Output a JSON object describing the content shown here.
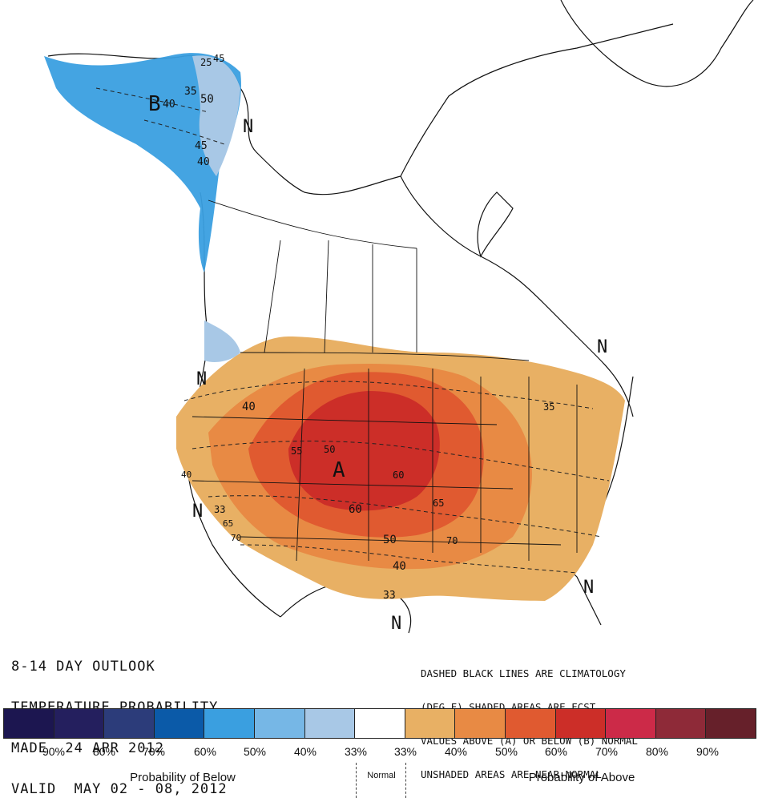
{
  "outlook": {
    "line1": "8-14 DAY OUTLOOK",
    "line2": "TEMPERATURE PROBABILITY",
    "line3": "MADE  24 APR 2012",
    "line4": "VALID  MAY 02 - 08, 2012"
  },
  "notes": {
    "line1": "DASHED BLACK LINES ARE CLIMATOLOGY",
    "line2": "(DEG F) SHADED AREAS ARE FCST",
    "line3": "VALUES ABOVE (A) OR BELOW (B) NORMAL",
    "line4": "UNSHADED AREAS ARE NEAR-NORMAL"
  },
  "map_labels": {
    "below_center": "B",
    "above_center": "A",
    "normal_marker": "N"
  },
  "contour_labels": [
    "25",
    "35",
    "40",
    "45",
    "50",
    "40",
    "45",
    "40",
    "50",
    "55",
    "60",
    "60",
    "65",
    "70",
    "50",
    "40",
    "33",
    "33",
    "65",
    "70",
    "35",
    "40"
  ],
  "legend": {
    "colors": [
      "#1c1650",
      "#241f5e",
      "#2c3c7a",
      "#0b5aa8",
      "#3a9fe0",
      "#76b7e6",
      "#a8c8e6",
      "#ffffff",
      "#e8b064",
      "#e88a44",
      "#e05a30",
      "#cc2e28",
      "#cc2a48",
      "#8e2a38",
      "#66202a"
    ],
    "labels": [
      "90%",
      "80%",
      "70%",
      "60%",
      "50%",
      "40%",
      "33%",
      "33%",
      "40%",
      "50%",
      "60%",
      "70%",
      "80%",
      "90%"
    ],
    "below_caption": "Probability of Below",
    "normal_caption": "Normal",
    "above_caption": "Probability of Above"
  }
}
